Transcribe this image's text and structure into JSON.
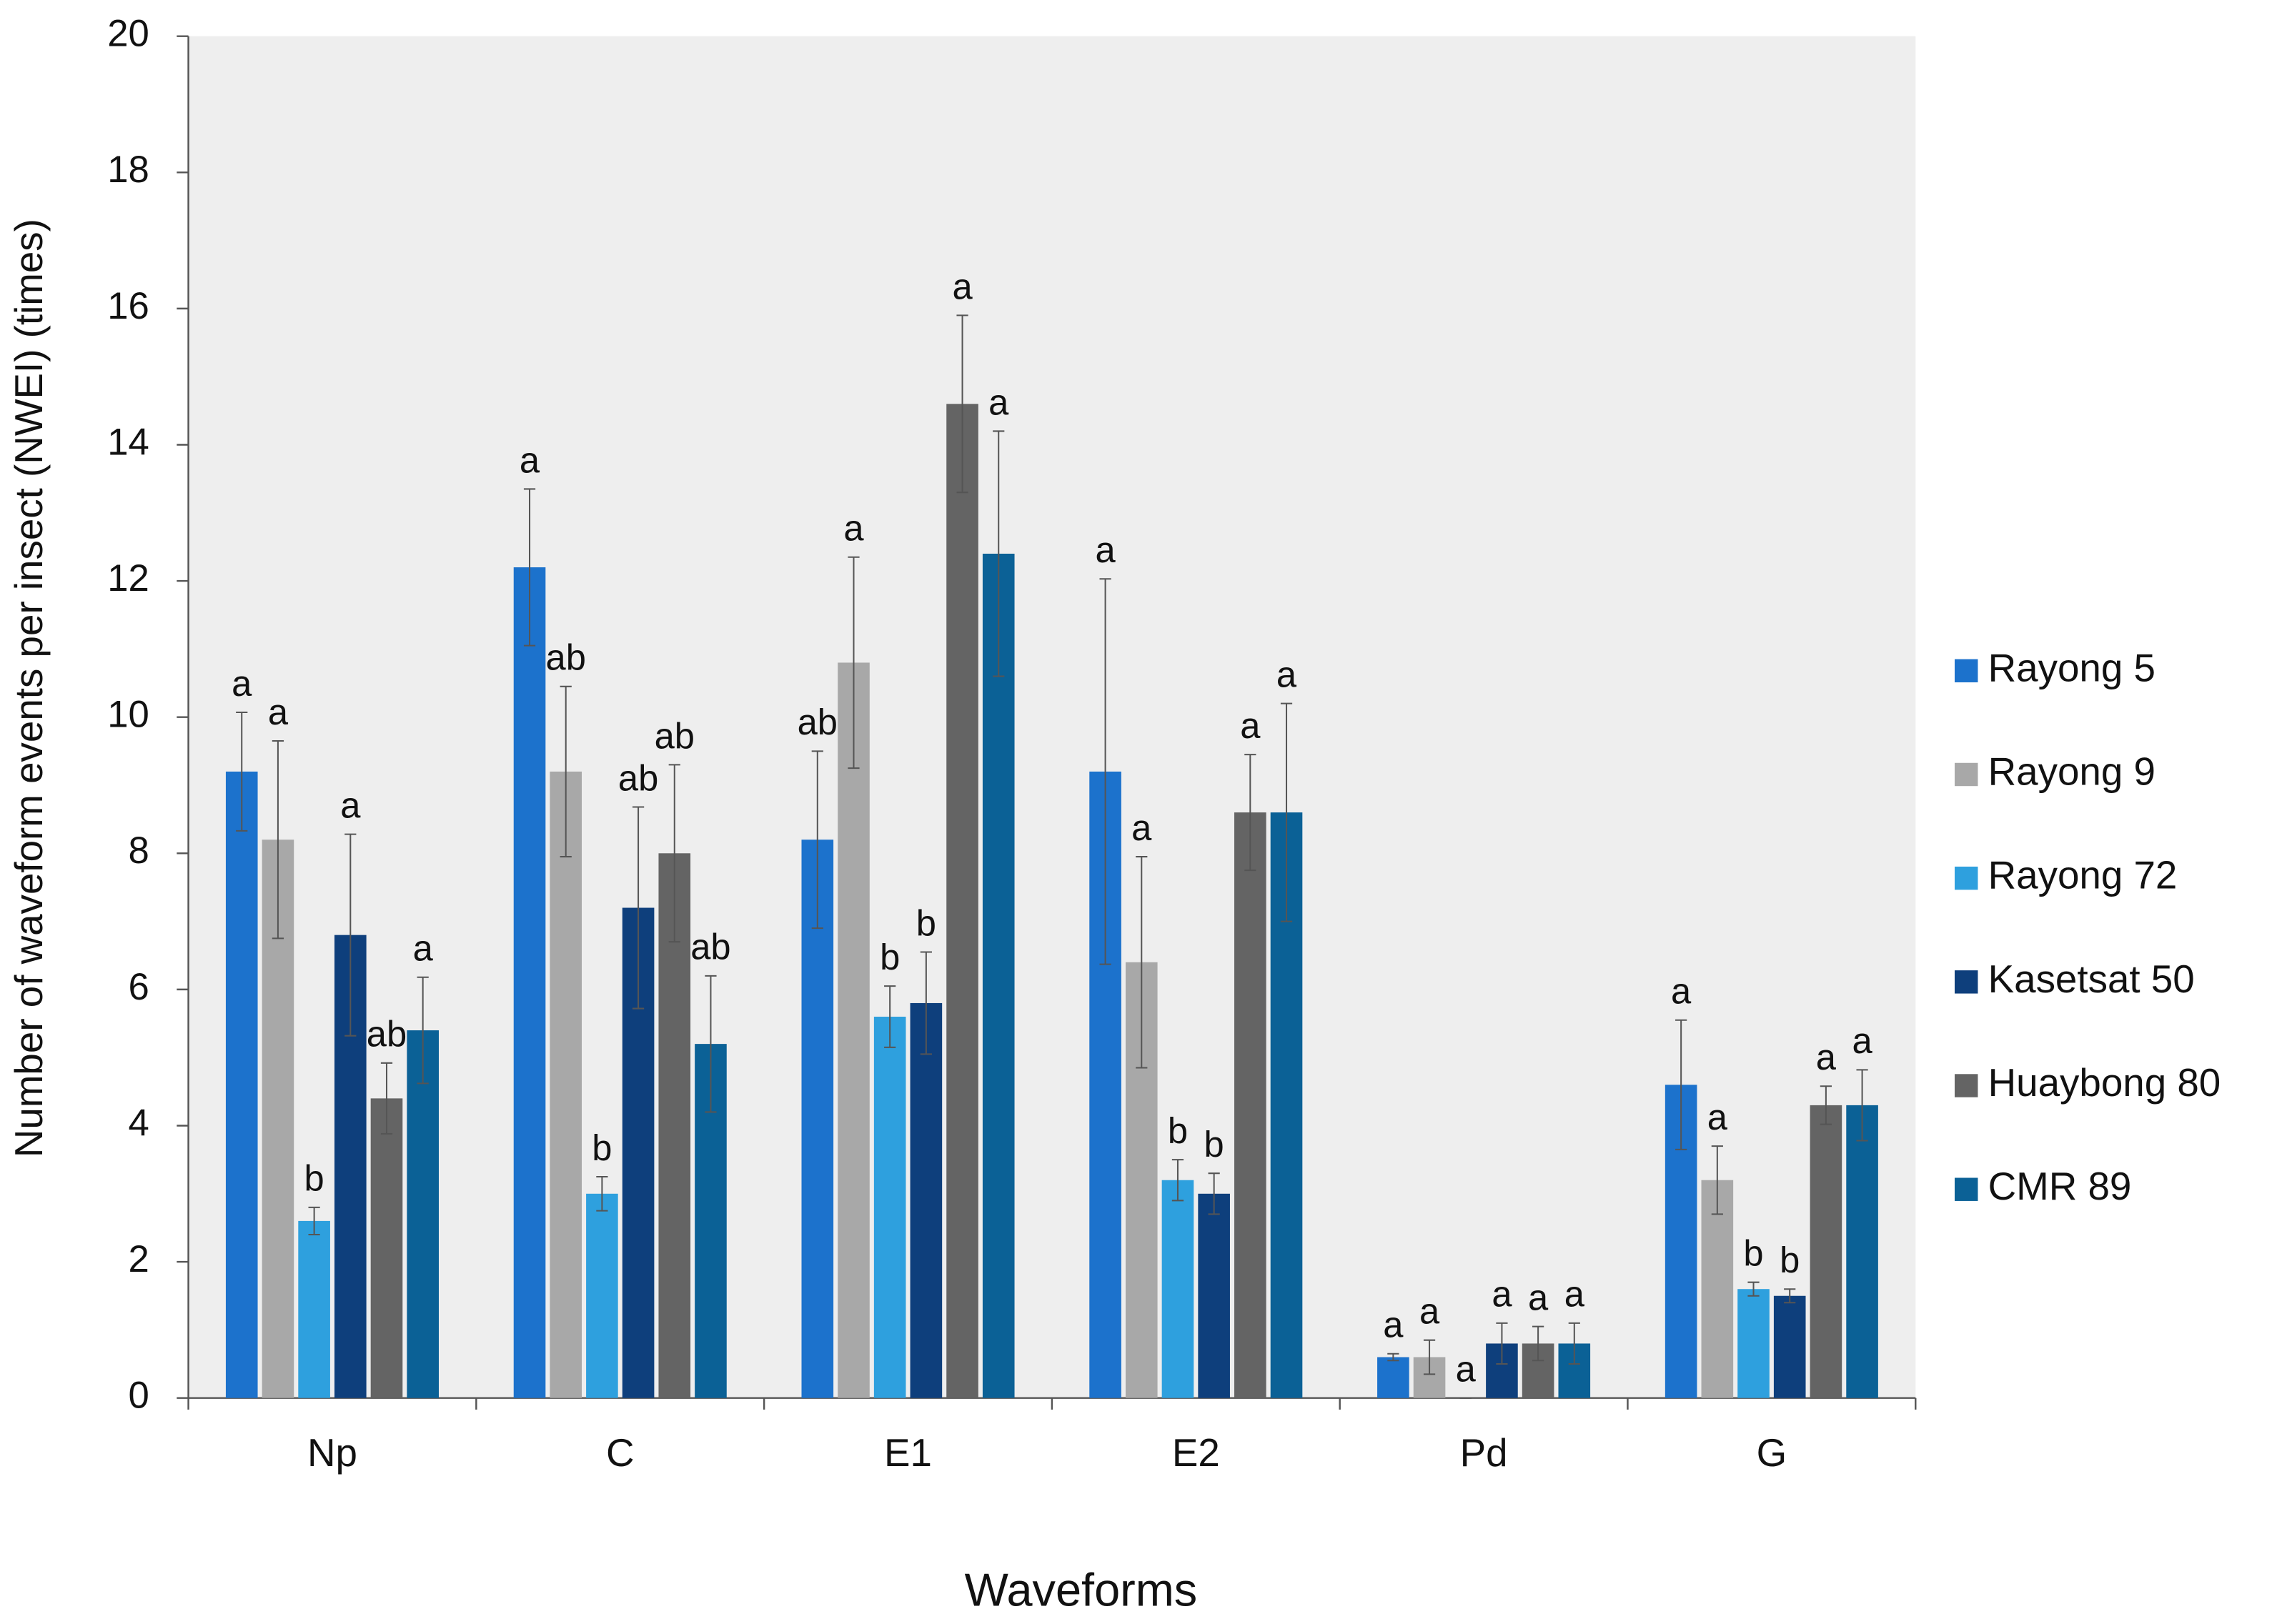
{
  "chart_data": {
    "type": "bar",
    "y_label": "Number of waveform events per insect (NWEI) (times)",
    "x_label": "Waveforms",
    "categories": [
      "Np",
      "C",
      "E1",
      "E2",
      "Pd",
      "G"
    ],
    "ylim": [
      0,
      20
    ],
    "yticks": [
      0,
      2,
      4,
      6,
      8,
      10,
      12,
      14,
      16,
      18,
      20
    ],
    "grid": false,
    "legend": "right",
    "series": [
      {
        "name": "Rayong 5",
        "color": "#1c72cc",
        "values": [
          9.2,
          12.2,
          8.2,
          9.2,
          0.6,
          4.6
        ],
        "errors": [
          0.87,
          1.15,
          1.3,
          2.83,
          0.05,
          0.95
        ],
        "letters": [
          "a",
          "a",
          "ab",
          "a",
          "a",
          "a"
        ]
      },
      {
        "name": "Rayong 9",
        "color": "#a8a8a8",
        "values": [
          8.2,
          9.2,
          10.8,
          6.4,
          0.6,
          3.2
        ],
        "errors": [
          1.45,
          1.25,
          1.55,
          1.55,
          0.25,
          0.5
        ],
        "letters": [
          "a",
          "ab",
          "a",
          "a",
          "a",
          "a"
        ]
      },
      {
        "name": "Rayong 72",
        "color": "#2ea0de",
        "values": [
          2.6,
          3.0,
          5.6,
          3.2,
          0,
          1.6
        ],
        "errors": [
          0.2,
          0.25,
          0.45,
          0.3,
          0,
          0.1
        ],
        "letters": [
          "b",
          "b",
          "b",
          "b",
          "a",
          "b"
        ]
      },
      {
        "name": "Kasetsat 50",
        "color": "#0e3f7c",
        "values": [
          6.8,
          7.2,
          5.8,
          3.0,
          0.8,
          1.5
        ],
        "errors": [
          1.48,
          1.48,
          0.75,
          0.3,
          0.3,
          0.1
        ],
        "letters": [
          "a",
          "ab",
          "b",
          "b",
          "a",
          "b"
        ]
      },
      {
        "name": "Huaybong 80",
        "color": "#646464",
        "values": [
          4.4,
          8.0,
          14.6,
          8.6,
          0.8,
          4.3
        ],
        "errors": [
          0.52,
          1.3,
          1.3,
          0.85,
          0.25,
          0.28
        ],
        "letters": [
          "ab",
          "ab",
          "a",
          "a",
          "a",
          "a"
        ]
      },
      {
        "name": "CMR 89",
        "color": "#0b6196",
        "values": [
          5.4,
          5.2,
          12.4,
          8.6,
          0.8,
          4.3
        ],
        "errors": [
          0.78,
          1.0,
          1.8,
          1.6,
          0.3,
          0.52
        ],
        "letters": [
          "a",
          "ab",
          "a",
          "a",
          "a",
          "a"
        ]
      }
    ]
  }
}
